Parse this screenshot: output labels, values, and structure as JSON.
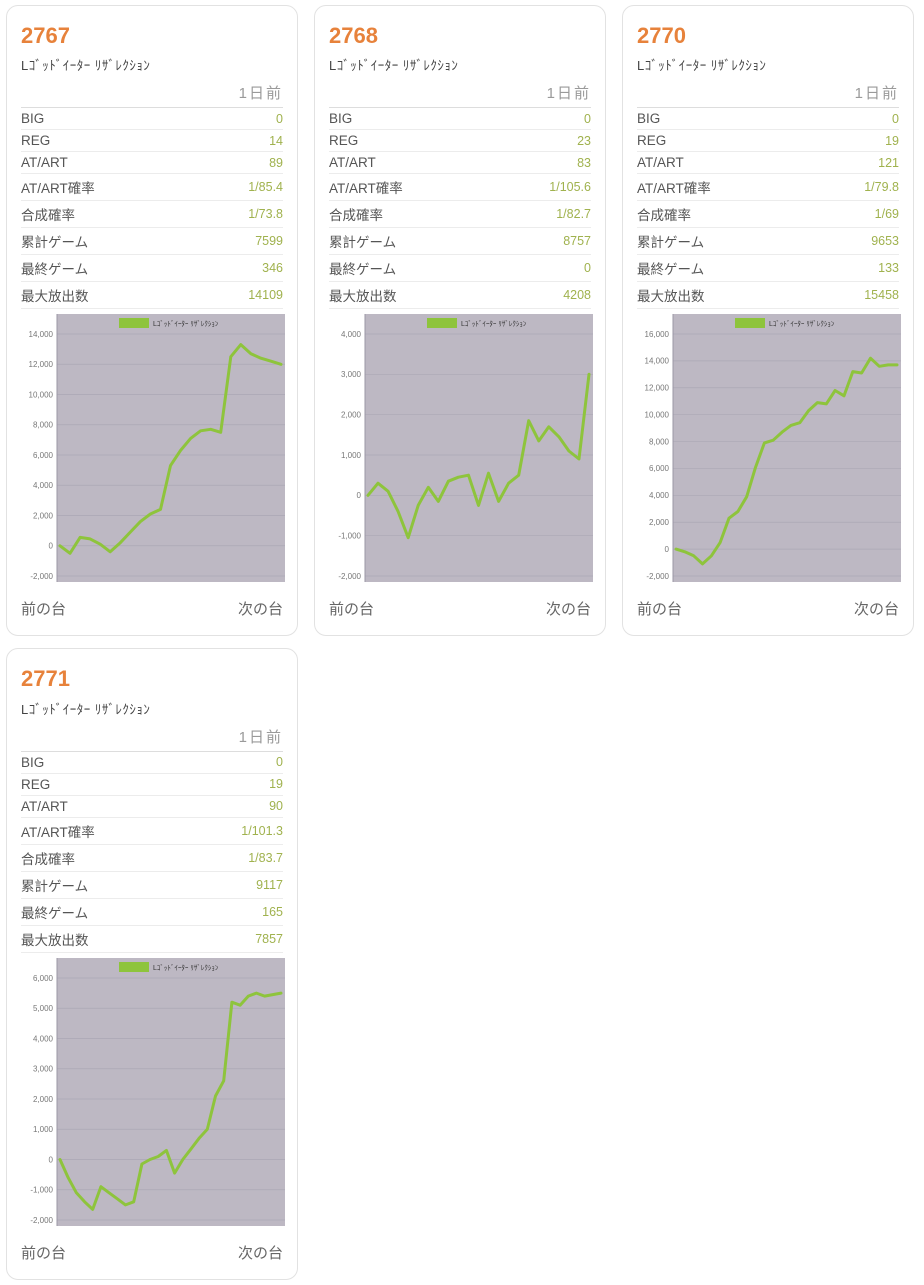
{
  "colors": {
    "machine_number_orange": "#e7823b",
    "stat_value_green": "#a0b24e",
    "chart_line_green": "#8ec43c",
    "chart_plot_background": "#bdb8c3",
    "chart_gridline": "#aba7b4",
    "chart_axis_label_gray": "#777777",
    "legend_text_dark": "#333333"
  },
  "cards": [
    {
      "number": "2767",
      "machine_name": "Lｺﾞｯﾄﾞｲｰﾀｰ ﾘｻﾞﾚｸｼｮﾝ",
      "date_label": "1日前",
      "stats": [
        {
          "label": "BIG",
          "value": "0"
        },
        {
          "label": "REG",
          "value": "14"
        },
        {
          "label": "AT/ART",
          "value": "89"
        },
        {
          "label": "AT/ART確率",
          "value": "1/85.4"
        },
        {
          "label": "合成確率",
          "value": "1/73.8"
        },
        {
          "label": "累計ゲーム",
          "value": "7599"
        },
        {
          "label": "最終ゲーム",
          "value": "346"
        },
        {
          "label": "最大放出数",
          "value": "14109"
        }
      ],
      "prev_link": "前の台",
      "next_link": "次の台"
    },
    {
      "number": "2768",
      "machine_name": "Lｺﾞｯﾄﾞｲｰﾀｰ ﾘｻﾞﾚｸｼｮﾝ",
      "date_label": "1日前",
      "stats": [
        {
          "label": "BIG",
          "value": "0"
        },
        {
          "label": "REG",
          "value": "23"
        },
        {
          "label": "AT/ART",
          "value": "83"
        },
        {
          "label": "AT/ART確率",
          "value": "1/105.6"
        },
        {
          "label": "合成確率",
          "value": "1/82.7"
        },
        {
          "label": "累計ゲーム",
          "value": "8757"
        },
        {
          "label": "最終ゲーム",
          "value": "0"
        },
        {
          "label": "最大放出数",
          "value": "4208"
        }
      ],
      "prev_link": "前の台",
      "next_link": "次の台"
    },
    {
      "number": "2770",
      "machine_name": "Lｺﾞｯﾄﾞｲｰﾀｰ ﾘｻﾞﾚｸｼｮﾝ",
      "date_label": "1日前",
      "stats": [
        {
          "label": "BIG",
          "value": "0"
        },
        {
          "label": "REG",
          "value": "19"
        },
        {
          "label": "AT/ART",
          "value": "121"
        },
        {
          "label": "AT/ART確率",
          "value": "1/79.8"
        },
        {
          "label": "合成確率",
          "value": "1/69"
        },
        {
          "label": "累計ゲーム",
          "value": "9653"
        },
        {
          "label": "最終ゲーム",
          "value": "133"
        },
        {
          "label": "最大放出数",
          "value": "15458"
        }
      ],
      "prev_link": "前の台",
      "next_link": "次の台"
    },
    {
      "number": "2771",
      "machine_name": "Lｺﾞｯﾄﾞｲｰﾀｰ ﾘｻﾞﾚｸｼｮﾝ",
      "date_label": "1日前",
      "stats": [
        {
          "label": "BIG",
          "value": "0"
        },
        {
          "label": "REG",
          "value": "19"
        },
        {
          "label": "AT/ART",
          "value": "90"
        },
        {
          "label": "AT/ART確率",
          "value": "1/101.3"
        },
        {
          "label": "合成確率",
          "value": "1/83.7"
        },
        {
          "label": "累計ゲーム",
          "value": "9117"
        },
        {
          "label": "最終ゲーム",
          "value": "165"
        },
        {
          "label": "最大放出数",
          "value": "7857"
        }
      ],
      "prev_link": "前の台",
      "next_link": "次の台"
    }
  ],
  "chart_data": [
    {
      "type": "line",
      "title": "",
      "legend": "Lｺﾞｯﾄﾞｲｰﾀｰ ﾘｻﾞﾚｸｼｮﾝ",
      "ylim": [
        -2000,
        14000
      ],
      "ytick_step": 2000,
      "grid": true,
      "legend_position": "top-center",
      "values": [
        0,
        -500,
        550,
        450,
        100,
        -400,
        200,
        900,
        1600,
        2100,
        2400,
        5300,
        6300,
        7100,
        7600,
        7700,
        7500,
        12500,
        13300,
        12700,
        12400,
        12200,
        12000
      ]
    },
    {
      "type": "line",
      "title": "",
      "legend": "Lｺﾞｯﾄﾞｲｰﾀｰ ﾘｻﾞﾚｸｼｮﾝ",
      "ylim": [
        -2000,
        4000
      ],
      "ytick_step": 1000,
      "grid": true,
      "legend_position": "top-center",
      "values": [
        0,
        300,
        100,
        -400,
        -1050,
        -250,
        200,
        -150,
        350,
        450,
        500,
        -250,
        550,
        -150,
        300,
        500,
        1850,
        1350,
        1700,
        1450,
        1100,
        900,
        3000
      ]
    },
    {
      "type": "line",
      "title": "",
      "legend": "Lｺﾞｯﾄﾞｲｰﾀｰ ﾘｻﾞﾚｸｼｮﾝ",
      "ylim": [
        -2000,
        16000
      ],
      "ytick_step": 2000,
      "grid": true,
      "legend_position": "top-center",
      "values": [
        0,
        -200,
        -500,
        -1100,
        -500,
        500,
        2300,
        2800,
        3900,
        6100,
        7900,
        8100,
        8700,
        9200,
        9400,
        10300,
        10900,
        10800,
        11800,
        11400,
        13200,
        13100,
        14200,
        13600,
        13700,
        13700
      ]
    },
    {
      "type": "line",
      "title": "",
      "legend": "Lｺﾞｯﾄﾞｲｰﾀｰ ﾘｻﾞﾚｸｼｮﾝ",
      "ylim": [
        -2000,
        6000
      ],
      "ytick_step": 1000,
      "grid": true,
      "legend_position": "top-center",
      "values": [
        0,
        -600,
        -1100,
        -1400,
        -1650,
        -900,
        -1100,
        -1300,
        -1500,
        -1400,
        -150,
        0,
        100,
        300,
        -450,
        0,
        350,
        700,
        1000,
        2100,
        2600,
        5200,
        5100,
        5400,
        5500,
        5400,
        5450,
        5500
      ]
    }
  ]
}
